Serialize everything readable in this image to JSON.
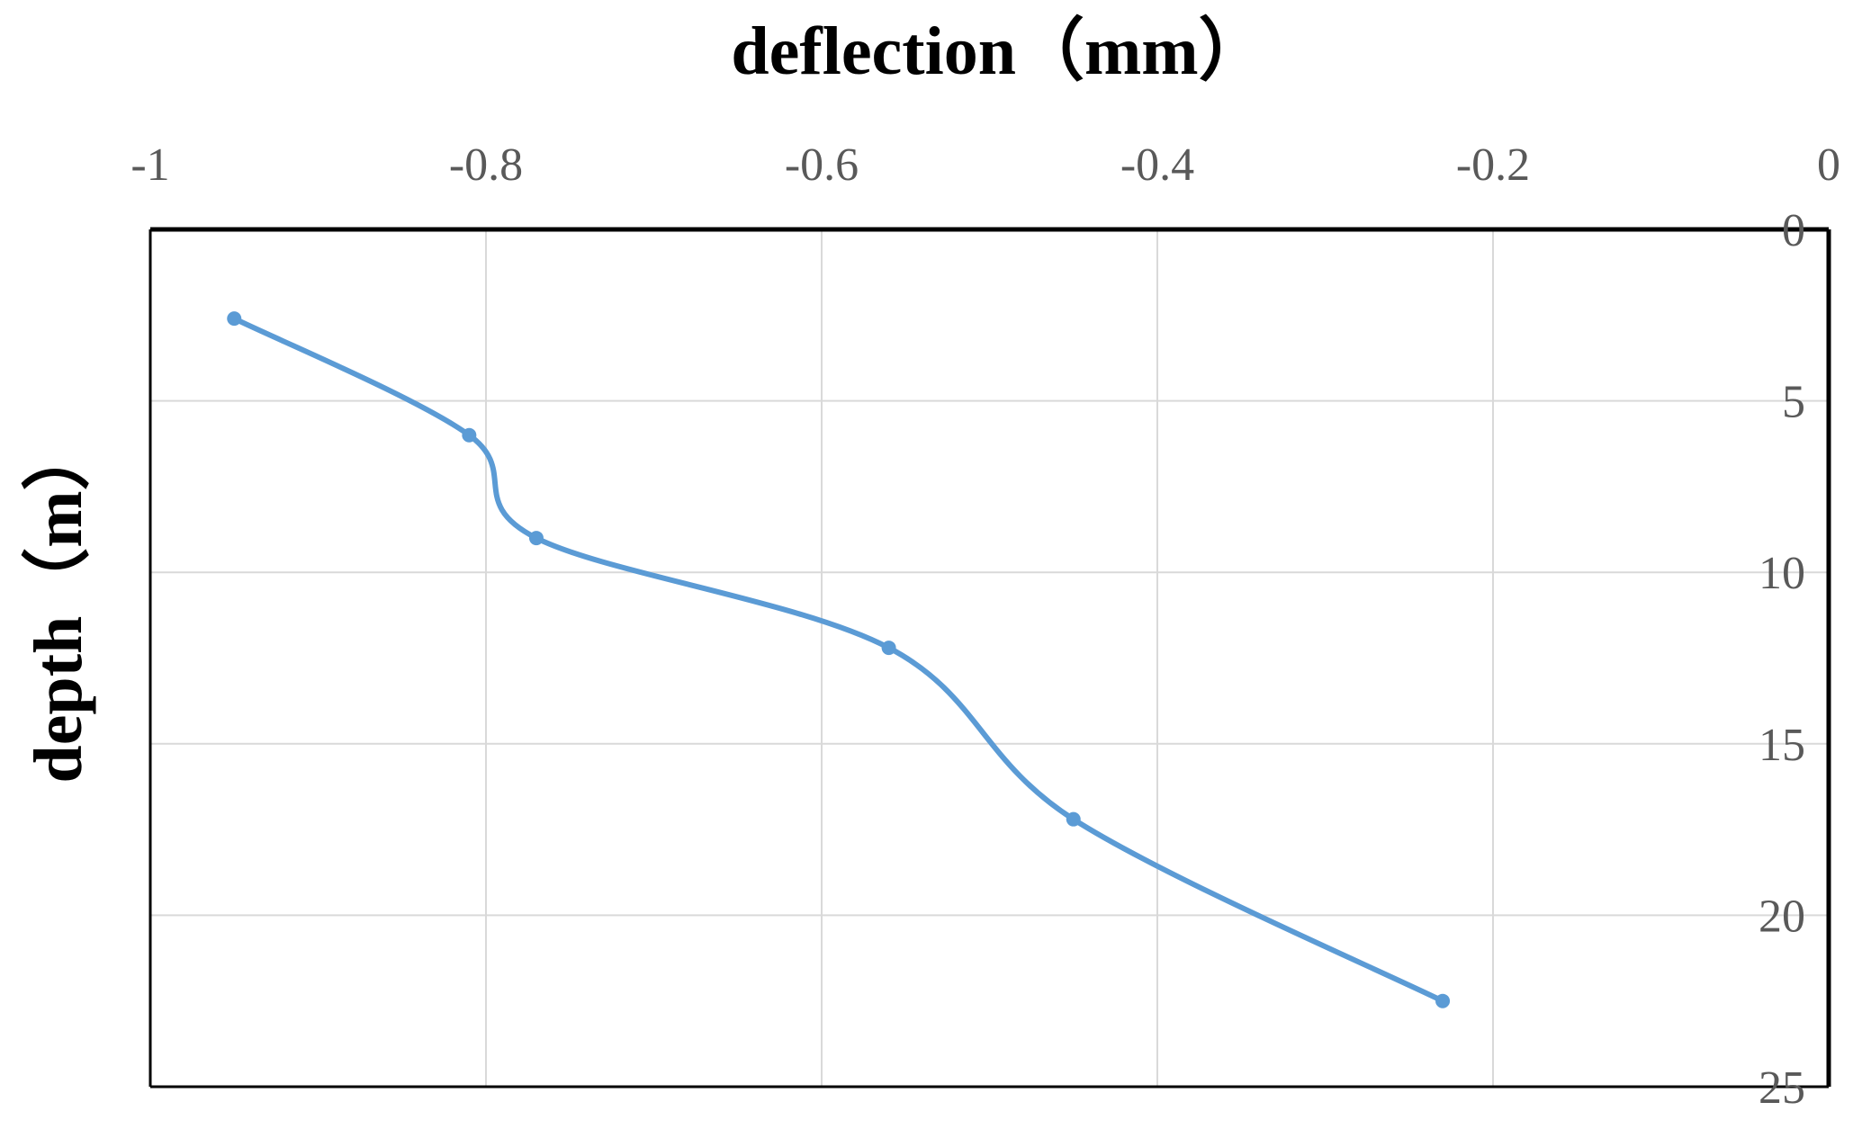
{
  "chart_data": {
    "type": "line",
    "title": "",
    "xlabel": "deflection（mm）",
    "ylabel": "depth（m）",
    "xlim": [
      -1,
      0
    ],
    "ylim": [
      0,
      25
    ],
    "y_inverted": true,
    "x_axis_position": "top",
    "y_axis_position": "right",
    "x_ticks": [
      -1,
      -0.8,
      -0.6,
      -0.4,
      -0.2,
      0
    ],
    "y_ticks": [
      0,
      5,
      10,
      15,
      20,
      25
    ],
    "x_tick_labels": [
      "-1",
      "-0.8",
      "-0.6",
      "-0.4",
      "-0.2",
      "0"
    ],
    "y_tick_labels": [
      "0",
      "5",
      "10",
      "15",
      "20",
      "25"
    ],
    "grid": true,
    "smooth": true,
    "series": [
      {
        "color": "#5b9bd5",
        "points": [
          {
            "x": -0.95,
            "y": 2.6
          },
          {
            "x": -0.81,
            "y": 6.0
          },
          {
            "x": -0.77,
            "y": 9.0
          },
          {
            "x": -0.56,
            "y": 12.2
          },
          {
            "x": -0.45,
            "y": 17.2
          },
          {
            "x": -0.23,
            "y": 22.5
          }
        ]
      }
    ],
    "colors": {
      "series": "#5b9bd5",
      "grid": "#d9d9d9",
      "frame": "#000000",
      "tick_text": "#595959"
    }
  }
}
